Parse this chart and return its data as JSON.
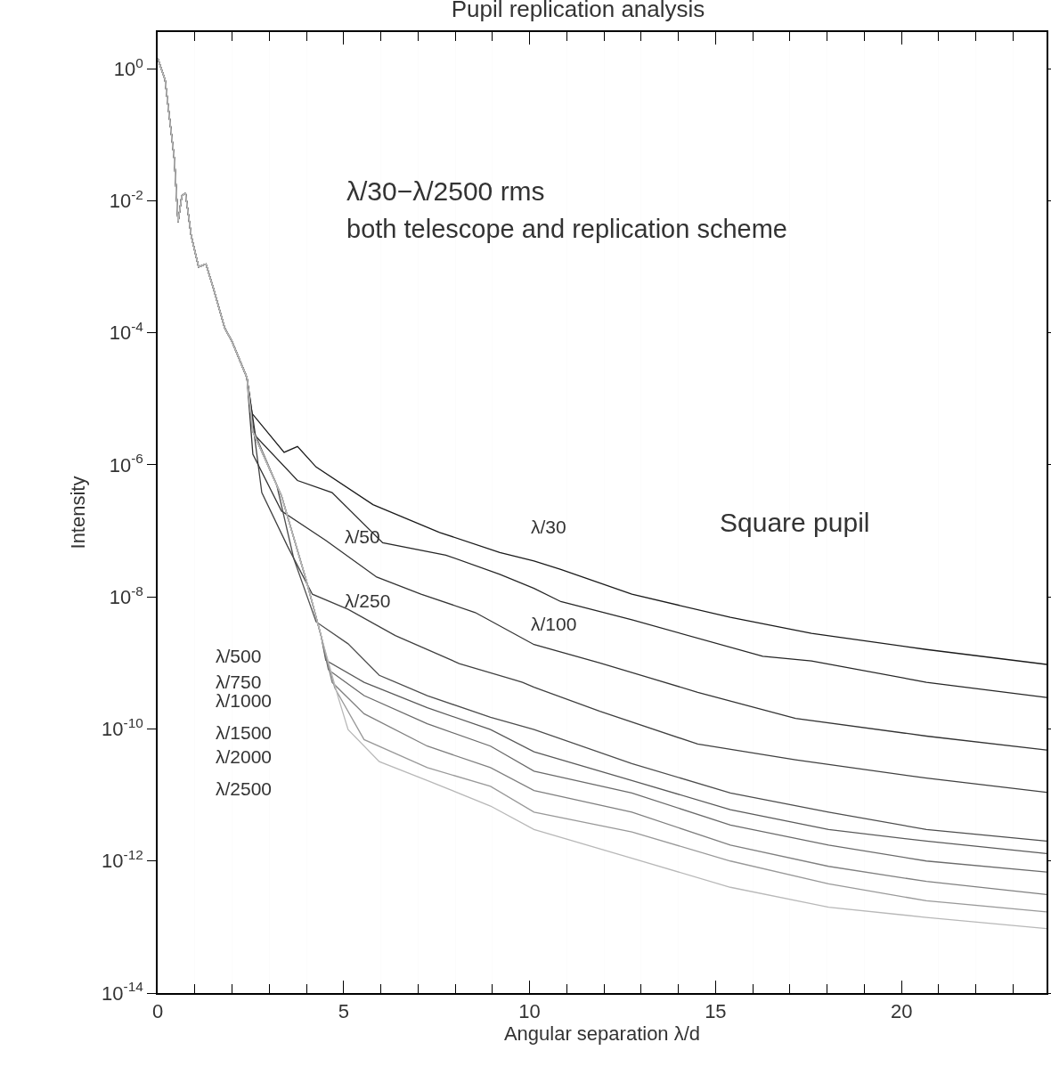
{
  "chart_data": {
    "type": "line",
    "title": "Pupil replication analysis",
    "xlabel": "Angular separation λ/d",
    "ylabel": "Intensity",
    "log": "y",
    "grid": false,
    "marker": "none",
    "line_style": "solid",
    "xlim": [
      0,
      23.9
    ],
    "ylim": [
      1e-14,
      3.6
    ],
    "xticks": [
      0,
      {
        "value": 1,
        "label": null
      },
      {
        "value": 2,
        "label": null
      },
      {
        "value": 3,
        "label": null
      },
      {
        "value": 4,
        "label": null
      },
      5,
      {
        "value": 6,
        "label": null
      },
      {
        "value": 7,
        "label": null
      },
      {
        "value": 8,
        "label": null
      },
      {
        "value": 9,
        "label": null
      },
      10,
      {
        "value": 11,
        "label": null
      },
      {
        "value": 12,
        "label": null
      },
      {
        "value": 13,
        "label": null
      },
      {
        "value": 14,
        "label": null
      },
      15,
      {
        "value": 16,
        "label": null
      },
      {
        "value": 17,
        "label": null
      },
      {
        "value": 18,
        "label": null
      },
      {
        "value": 19,
        "label": null
      },
      20,
      {
        "value": 21,
        "label": null
      },
      {
        "value": 22,
        "label": null
      },
      {
        "value": 23,
        "label": null
      }
    ],
    "yticks": [
      {
        "value": 1,
        "label": "10$^{0}$"
      },
      {
        "value": 0.01,
        "label": "10$^{-2}$"
      },
      {
        "value": 0.0001,
        "label": "10$^{-4}$"
      },
      {
        "value": 1e-06,
        "label": "10$^{-6}$"
      },
      {
        "value": 1e-08,
        "label": "10$^{-8}$"
      },
      {
        "value": 1e-10,
        "label": "10$^{-10}$"
      },
      {
        "value": 1e-12,
        "label": "10$^{-12}$"
      },
      {
        "value": 1e-14,
        "label": "10$^{-14}$"
      }
    ],
    "series": [
      {
        "color": "#1a1a1a",
        "x": [
          0,
          0.2,
          0.45,
          0.55,
          0.65,
          0.75,
          0.9,
          1.1,
          1.3,
          1.5,
          1.8,
          2.0,
          2.4,
          2.54,
          3.4,
          3.76,
          4.26,
          5.79,
          7.58,
          9.2,
          10.12,
          10.84,
          12.75,
          15.4,
          17.58,
          20.67,
          23.9
        ],
        "values": [
          1.45,
          0.68,
          0.042,
          0.0048,
          0.012,
          0.013,
          0.003,
          0.001,
          0.0011,
          0.00047,
          0.00012,
          7.4e-05,
          2.1e-05,
          6e-06,
          1.55e-06,
          1.9e-06,
          9.3e-07,
          2.5e-07,
          9.5e-08,
          4.7e-08,
          3.5e-08,
          2.6e-08,
          1.1e-08,
          4.9e-09,
          2.8e-09,
          1.6e-09,
          9.5e-10
        ]
      },
      {
        "color": "#262626",
        "x": [
          0,
          0.2,
          0.45,
          0.55,
          0.65,
          0.75,
          0.9,
          1.1,
          1.3,
          1.5,
          1.8,
          2.0,
          2.4,
          2.63,
          3.76,
          4.69,
          6.05,
          7.75,
          9.2,
          10.12,
          10.84,
          12.75,
          16.27,
          17.58,
          20.67,
          23.9
        ],
        "values": [
          1.45,
          0.68,
          0.042,
          0.0048,
          0.012,
          0.013,
          0.003,
          0.001,
          0.0011,
          0.00047,
          0.00012,
          7.4e-05,
          2.1e-05,
          2.75e-06,
          5.8e-07,
          3.8e-07,
          6.6e-08,
          4.3e-08,
          2.2e-08,
          1.35e-08,
          8.5e-09,
          4.5e-09,
          1.26e-09,
          1.07e-09,
          5.1e-10,
          3e-10
        ]
      },
      {
        "color": "#333333",
        "x": [
          0,
          0.2,
          0.45,
          0.55,
          0.65,
          0.75,
          0.9,
          1.1,
          1.3,
          1.5,
          1.8,
          2.0,
          2.4,
          2.56,
          3.33,
          4.52,
          5.89,
          7.08,
          8.54,
          10.12,
          11.89,
          14.52,
          17.15,
          20.67,
          23.9
        ],
        "values": [
          1.45,
          0.68,
          0.042,
          0.0048,
          0.012,
          0.013,
          0.003,
          0.001,
          0.0011,
          0.00047,
          0.00012,
          7.4e-05,
          2.1e-05,
          1.45e-06,
          2e-07,
          7.2e-08,
          2e-08,
          1.1e-08,
          5.8e-09,
          1.9e-09,
          1e-09,
          3.6e-10,
          1.45e-10,
          7.8e-11,
          4.8e-11
        ]
      },
      {
        "color": "#404040",
        "x": [
          0,
          0.2,
          0.45,
          0.55,
          0.65,
          0.75,
          0.9,
          1.1,
          1.3,
          1.5,
          1.8,
          2.0,
          2.4,
          2.8,
          3.49,
          4.16,
          5.12,
          6.39,
          8.11,
          9.81,
          10.12,
          11.89,
          14.52,
          17.15,
          20.67,
          23.9
        ],
        "values": [
          1.45,
          0.68,
          0.042,
          0.0048,
          0.012,
          0.013,
          0.003,
          0.001,
          0.0011,
          0.00047,
          0.00012,
          7.4e-05,
          2.1e-05,
          3.8e-07,
          5.9e-08,
          1.1e-08,
          6.5e-09,
          2.6e-09,
          9.8e-10,
          5.1e-10,
          4.3e-10,
          1.86e-10,
          5.9e-11,
          3.4e-11,
          1.8e-11,
          1.1e-11
        ]
      },
      {
        "color": "#4d4d4d",
        "x": [
          0,
          0.2,
          0.45,
          0.55,
          0.65,
          0.75,
          0.9,
          1.1,
          1.3,
          1.5,
          1.8,
          2.0,
          2.4,
          2.56,
          3.2,
          3.66,
          4.26,
          5.12,
          5.96,
          7.25,
          8.95,
          10.12,
          12.75,
          15.4,
          18.04,
          20.67,
          23.9
        ],
        "values": [
          1.45,
          0.68,
          0.042,
          0.0048,
          0.012,
          0.013,
          0.003,
          0.001,
          0.0011,
          0.00047,
          0.00012,
          7.4e-05,
          2.1e-05,
          3.5e-06,
          5e-07,
          3.8e-08,
          4.2e-09,
          1.95e-09,
          6.5e-10,
          3.2e-10,
          1.5e-10,
          9.8e-11,
          3e-11,
          1.07e-11,
          5.5e-12,
          3e-12,
          2e-12
        ]
      },
      {
        "color": "#5a5a5a",
        "x": [
          0,
          0.2,
          0.45,
          0.55,
          0.65,
          0.75,
          0.9,
          1.1,
          1.3,
          1.5,
          1.8,
          2.0,
          2.4,
          2.56,
          3.33,
          4.0,
          4.4,
          4.52,
          5.55,
          7.25,
          8.95,
          10.12,
          12.75,
          15.4,
          18.04,
          20.67,
          23.9
        ],
        "values": [
          1.45,
          0.68,
          0.042,
          0.0048,
          0.012,
          0.013,
          0.003,
          0.001,
          0.0011,
          0.00047,
          0.00012,
          7.4e-05,
          2.1e-05,
          3.2e-06,
          3.4e-07,
          1.75e-08,
          2.5e-09,
          1.1e-09,
          5.1e-10,
          2.1e-10,
          9.8e-11,
          4.5e-11,
          1.66e-11,
          6e-12,
          3e-12,
          2e-12,
          1.3e-12
        ]
      },
      {
        "color": "#6b6b6b",
        "x": [
          0,
          0.2,
          0.45,
          0.55,
          0.65,
          0.75,
          0.9,
          1.1,
          1.3,
          1.5,
          1.8,
          2.0,
          2.4,
          2.56,
          3.33,
          4.0,
          4.4,
          4.59,
          5.55,
          7.25,
          8.95,
          10.12,
          12.75,
          15.4,
          18.04,
          20.67,
          23.9
        ],
        "values": [
          1.45,
          0.68,
          0.042,
          0.0048,
          0.012,
          0.013,
          0.003,
          0.001,
          0.0011,
          0.00047,
          0.00012,
          7.4e-05,
          2.1e-05,
          3.2e-06,
          3.4e-07,
          1.75e-08,
          2.5e-09,
          7.9e-10,
          3.2e-10,
          1.2e-10,
          5.5e-11,
          2.3e-11,
          1.07e-11,
          3.5e-12,
          1.74e-12,
          1e-12,
          6.8e-13
        ]
      },
      {
        "color": "#808080",
        "x": [
          0,
          0.2,
          0.45,
          0.55,
          0.65,
          0.75,
          0.9,
          1.1,
          1.3,
          1.5,
          1.8,
          2.0,
          2.4,
          2.56,
          3.33,
          4.0,
          4.4,
          4.69,
          5.55,
          7.25,
          8.95,
          10.12,
          12.75,
          15.4,
          18.04,
          20.67,
          23.9
        ],
        "values": [
          1.45,
          0.68,
          0.042,
          0.0048,
          0.012,
          0.013,
          0.003,
          0.001,
          0.0011,
          0.00047,
          0.00012,
          7.4e-05,
          2.1e-05,
          3.2e-06,
          3.4e-07,
          1.75e-08,
          2.5e-09,
          5.1e-10,
          1.7e-10,
          5.5e-11,
          2.6e-11,
          1.17e-11,
          5.5e-12,
          1.74e-12,
          8.3e-13,
          4.9e-13,
          3.1e-13
        ]
      },
      {
        "color": "#999999",
        "x": [
          0,
          0.2,
          0.45,
          0.55,
          0.65,
          0.75,
          0.9,
          1.1,
          1.3,
          1.5,
          1.8,
          2.0,
          2.4,
          2.56,
          3.33,
          4.0,
          4.4,
          4.76,
          5.55,
          7.25,
          8.95,
          10.12,
          12.75,
          15.4,
          18.04,
          20.67,
          23.9
        ],
        "values": [
          1.45,
          0.68,
          0.042,
          0.0048,
          0.012,
          0.013,
          0.003,
          0.001,
          0.0011,
          0.00047,
          0.00012,
          7.4e-05,
          2.1e-05,
          3.2e-06,
          3.4e-07,
          1.75e-08,
          2.5e-09,
          4.2e-10,
          6.9e-11,
          2.6e-11,
          1.35e-11,
          5.5e-12,
          2.75e-12,
          1e-12,
          4.5e-13,
          2.5e-13,
          1.7e-13
        ]
      },
      {
        "color": "#b8b8b8",
        "x": [
          0,
          0.2,
          0.45,
          0.55,
          0.65,
          0.75,
          0.9,
          1.1,
          1.3,
          1.5,
          1.8,
          2.0,
          2.4,
          2.56,
          3.33,
          4.0,
          4.4,
          4.86,
          5.12,
          5.96,
          7.25,
          8.95,
          10.12,
          12.75,
          15.4,
          18.04,
          20.67,
          23.9
        ],
        "values": [
          1.45,
          0.68,
          0.042,
          0.0048,
          0.012,
          0.013,
          0.003,
          0.001,
          0.0011,
          0.00047,
          0.00012,
          7.4e-05,
          2.1e-05,
          3.2e-06,
          3.4e-07,
          1.75e-08,
          2.5e-09,
          2.95e-10,
          9.8e-11,
          3.2e-11,
          1.66e-11,
          6.8e-12,
          3e-12,
          1.1e-12,
          4e-13,
          2e-13,
          1.4e-13,
          9.5e-14
        ]
      }
    ],
    "annotations": [
      "λ/30−λ/2500 rms",
      "both telescope and replication scheme",
      "Square pupil",
      "λ/30",
      "λ/50",
      "λ/250",
      "λ/100",
      "λ/500",
      "λ/750",
      "λ/1000",
      "λ/1500",
      "λ/2000",
      "λ/2500"
    ]
  }
}
